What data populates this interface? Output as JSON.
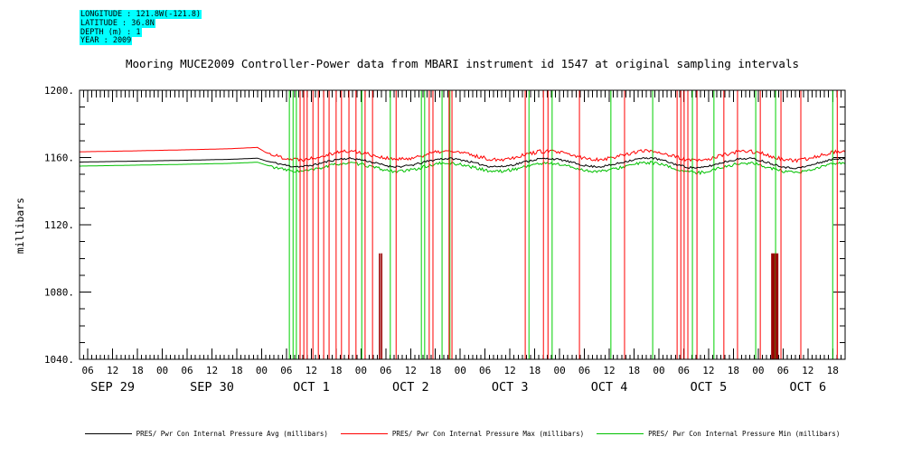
{
  "meta": {
    "lines": [
      "LONGITUDE : 121.8W(-121.8)",
      "LATITUDE : 36.8N",
      "DEPTH (m) : 1",
      "YEAR : 2009"
    ],
    "highlight_color": "#00ffff"
  },
  "title": "Mooring MUCE2009 Controller-Power data from MBARI instrument id 1547 at original sampling intervals",
  "chart_data": {
    "type": "line",
    "title": "Mooring MUCE2009 Controller-Power data from MBARI instrument id 1547 at original sampling intervals",
    "xlabel": "",
    "ylabel": "millibars",
    "ylim": [
      1040,
      1200
    ],
    "y_ticks": [
      {
        "value": 1200,
        "label": "1200."
      },
      {
        "value": 1160,
        "label": "1160."
      },
      {
        "value": 1120,
        "label": "1120."
      },
      {
        "value": 1080,
        "label": "1080."
      },
      {
        "value": 1040,
        "label": "1040."
      }
    ],
    "grid": false,
    "x_domain_hours": [
      4,
      189
    ],
    "x_hour_tick_start": 6,
    "x_hour_tick_step": 6,
    "hour_tick_labels": [
      "06",
      "12",
      "18",
      "00",
      "06",
      "12",
      "18",
      "00",
      "06",
      "12",
      "18",
      "00",
      "06",
      "12",
      "18",
      "00",
      "06",
      "12",
      "18",
      "00",
      "06",
      "12",
      "18",
      "00",
      "06",
      "12",
      "18",
      "00",
      "06",
      "12",
      "18"
    ],
    "day_labels": [
      {
        "label": "SEP 29",
        "t": 12
      },
      {
        "label": "SEP 30",
        "t": 36
      },
      {
        "label": "OCT 1",
        "t": 60
      },
      {
        "label": "OCT 2",
        "t": 84
      },
      {
        "label": "OCT 3",
        "t": 108
      },
      {
        "label": "OCT 4",
        "t": 132
      },
      {
        "label": "OCT 5",
        "t": 156
      },
      {
        "label": "OCT 6",
        "t": 180
      }
    ],
    "noise_start_hour": 50,
    "series": [
      {
        "name": "PRES/ Pwr Con Internal Pressure Avg (millibars)",
        "color": "#000000",
        "noise": 0.6,
        "points": [
          [
            4,
            1157.3
          ],
          [
            16,
            1157.8
          ],
          [
            28,
            1158.3
          ],
          [
            40,
            1158.9
          ],
          [
            47,
            1159.6
          ],
          [
            49,
            1158.0
          ],
          [
            52,
            1156.4
          ],
          [
            55,
            1154.8
          ],
          [
            58,
            1154.6
          ],
          [
            61,
            1155.8
          ],
          [
            64,
            1157.7
          ],
          [
            67,
            1159.2
          ],
          [
            70,
            1159.4
          ],
          [
            73,
            1158.3
          ],
          [
            76,
            1156.4
          ],
          [
            79,
            1154.8
          ],
          [
            82,
            1154.6
          ],
          [
            85,
            1155.8
          ],
          [
            88,
            1157.7
          ],
          [
            91,
            1159.2
          ],
          [
            94,
            1159.4
          ],
          [
            97,
            1158.3
          ],
          [
            100,
            1156.4
          ],
          [
            103,
            1154.8
          ],
          [
            106,
            1154.6
          ],
          [
            109,
            1155.8
          ],
          [
            112,
            1157.7
          ],
          [
            115,
            1159.2
          ],
          [
            118,
            1159.4
          ],
          [
            121,
            1158.3
          ],
          [
            124,
            1156.4
          ],
          [
            127,
            1154.8
          ],
          [
            130,
            1154.6
          ],
          [
            133,
            1155.8
          ],
          [
            136,
            1157.7
          ],
          [
            139,
            1159.2
          ],
          [
            142,
            1159.9
          ],
          [
            145,
            1158.3
          ],
          [
            148,
            1156.0
          ],
          [
            151,
            1154.2
          ],
          [
            154,
            1153.8
          ],
          [
            157,
            1155.4
          ],
          [
            160,
            1157.5
          ],
          [
            163,
            1159.0
          ],
          [
            166,
            1159.6
          ],
          [
            169,
            1158.0
          ],
          [
            172,
            1155.8
          ],
          [
            175,
            1154.0
          ],
          [
            178,
            1153.8
          ],
          [
            181,
            1155.6
          ],
          [
            184,
            1157.8
          ],
          [
            187,
            1159.4
          ],
          [
            189,
            1159.0
          ]
        ]
      },
      {
        "name": "PRES/ Pwr Con Internal Pressure Max (millibars)",
        "color": "#ff0000",
        "noise": 1.1,
        "points": [
          [
            4,
            1163.4
          ],
          [
            16,
            1163.9
          ],
          [
            28,
            1164.5
          ],
          [
            40,
            1165.2
          ],
          [
            47,
            1166.0
          ],
          [
            49,
            1163.0
          ],
          [
            52,
            1160.7
          ],
          [
            55,
            1159.1
          ],
          [
            58,
            1158.9
          ],
          [
            61,
            1160.1
          ],
          [
            64,
            1162.0
          ],
          [
            67,
            1163.5
          ],
          [
            70,
            1163.7
          ],
          [
            73,
            1162.6
          ],
          [
            76,
            1160.7
          ],
          [
            79,
            1159.1
          ],
          [
            82,
            1158.9
          ],
          [
            85,
            1160.1
          ],
          [
            88,
            1162.0
          ],
          [
            91,
            1163.5
          ],
          [
            94,
            1163.7
          ],
          [
            97,
            1162.6
          ],
          [
            100,
            1160.7
          ],
          [
            103,
            1159.1
          ],
          [
            106,
            1158.9
          ],
          [
            109,
            1160.1
          ],
          [
            112,
            1162.0
          ],
          [
            115,
            1163.5
          ],
          [
            118,
            1163.7
          ],
          [
            121,
            1162.6
          ],
          [
            124,
            1160.7
          ],
          [
            127,
            1159.1
          ],
          [
            130,
            1158.9
          ],
          [
            133,
            1160.1
          ],
          [
            136,
            1162.0
          ],
          [
            139,
            1163.5
          ],
          [
            142,
            1164.2
          ],
          [
            145,
            1162.6
          ],
          [
            148,
            1160.3
          ],
          [
            151,
            1158.5
          ],
          [
            154,
            1158.1
          ],
          [
            157,
            1159.7
          ],
          [
            160,
            1161.8
          ],
          [
            163,
            1163.3
          ],
          [
            166,
            1163.9
          ],
          [
            169,
            1162.3
          ],
          [
            172,
            1160.1
          ],
          [
            175,
            1158.3
          ],
          [
            178,
            1158.1
          ],
          [
            181,
            1159.9
          ],
          [
            184,
            1162.1
          ],
          [
            187,
            1163.7
          ],
          [
            189,
            1163.3
          ]
        ]
      },
      {
        "name": "PRES/ Pwr Con Internal Pressure Min (millibars)",
        "color": "#00c000",
        "noise": 0.9,
        "points": [
          [
            4,
            1154.9
          ],
          [
            16,
            1155.4
          ],
          [
            28,
            1155.9
          ],
          [
            40,
            1156.5
          ],
          [
            47,
            1157.2
          ],
          [
            49,
            1155.6
          ],
          [
            52,
            1153.6
          ],
          [
            55,
            1152.0
          ],
          [
            58,
            1151.8
          ],
          [
            61,
            1153.0
          ],
          [
            64,
            1154.9
          ],
          [
            67,
            1156.4
          ],
          [
            70,
            1156.6
          ],
          [
            73,
            1155.5
          ],
          [
            76,
            1153.6
          ],
          [
            79,
            1152.0
          ],
          [
            82,
            1151.8
          ],
          [
            85,
            1153.0
          ],
          [
            88,
            1154.9
          ],
          [
            91,
            1156.4
          ],
          [
            94,
            1156.6
          ],
          [
            97,
            1155.5
          ],
          [
            100,
            1153.6
          ],
          [
            103,
            1152.0
          ],
          [
            106,
            1151.8
          ],
          [
            109,
            1153.0
          ],
          [
            112,
            1154.9
          ],
          [
            115,
            1156.4
          ],
          [
            118,
            1156.6
          ],
          [
            121,
            1155.5
          ],
          [
            124,
            1153.6
          ],
          [
            127,
            1152.0
          ],
          [
            130,
            1151.8
          ],
          [
            133,
            1153.0
          ],
          [
            136,
            1154.9
          ],
          [
            139,
            1156.4
          ],
          [
            142,
            1157.1
          ],
          [
            145,
            1155.5
          ],
          [
            148,
            1153.2
          ],
          [
            151,
            1151.4
          ],
          [
            154,
            1151.0
          ],
          [
            157,
            1152.6
          ],
          [
            160,
            1154.7
          ],
          [
            163,
            1156.2
          ],
          [
            166,
            1156.8
          ],
          [
            169,
            1155.2
          ],
          [
            172,
            1153.0
          ],
          [
            175,
            1151.2
          ],
          [
            178,
            1151.0
          ],
          [
            181,
            1152.8
          ],
          [
            184,
            1155.0
          ],
          [
            187,
            1156.6
          ],
          [
            189,
            1156.2
          ]
        ]
      }
    ],
    "spikes": {
      "description": "vertical dropout/glitch lines spanning the full y-range, hours from SEP 29 00:00",
      "green_color": "#00d000",
      "red_color": "#ff0000",
      "darkred_color": "#990000",
      "green_full": [
        54.7,
        55.6,
        56.4,
        72.2,
        79.1,
        86.6,
        87.4,
        91.6,
        93.5,
        112.6,
        118.2,
        132.4,
        142.5,
        152.1,
        157.3,
        167.4,
        172.2,
        186.0
      ],
      "red_full": [
        57.3,
        58.2,
        59.0,
        60.4,
        61.7,
        63.0,
        64.3,
        66.0,
        67.3,
        69.1,
        70.8,
        73.0,
        74.8,
        80.5,
        88.5,
        89.4,
        93.3,
        94.0,
        111.7,
        116.1,
        117.2,
        124.8,
        135.7,
        148.4,
        149.3,
        150.1,
        151.0,
        153.2,
        159.7,
        163.0,
        168.5,
        173.5,
        178.3,
        187.1
      ],
      "darkred_partial": {
        "times": [
          76.5,
          77.0,
          171.3,
          171.6,
          171.9,
          172.35,
          172.7
        ],
        "top_value": 1103
      }
    },
    "legend_position": "bottom"
  }
}
